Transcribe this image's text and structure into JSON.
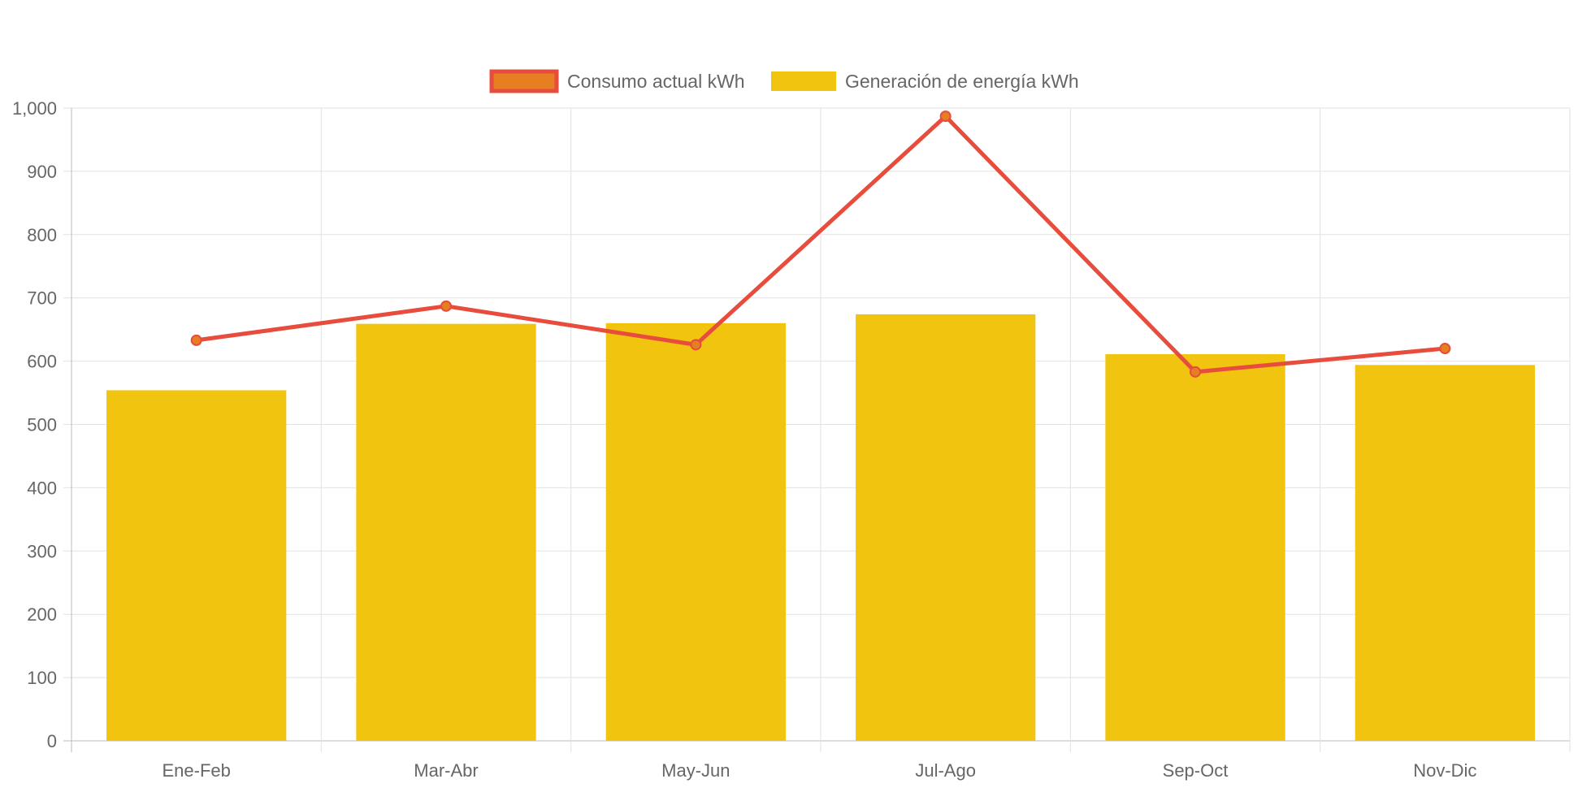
{
  "chart_data": {
    "type": "bar",
    "title": "",
    "xlabel": "",
    "ylabel": "",
    "categories": [
      "Ene-Feb",
      "Mar-Abr",
      "May-Jun",
      "Jul-Ago",
      "Sep-Oct",
      "Nov-Dic"
    ],
    "ylim": [
      0,
      1000
    ],
    "yticks": [
      0,
      100,
      200,
      300,
      400,
      500,
      600,
      700,
      800,
      900,
      1000
    ],
    "ytick_labels": [
      "0",
      "100",
      "200",
      "300",
      "400",
      "500",
      "600",
      "700",
      "800",
      "900",
      "1,000"
    ],
    "grid": true,
    "legend_position": "top-center",
    "series": [
      {
        "name": "Consumo actual kWh",
        "type": "line",
        "color": "#e74c3c",
        "marker_fill": "#e67e22",
        "values": [
          633,
          687,
          626,
          987,
          583,
          620
        ]
      },
      {
        "name": "Generación de energía kWh",
        "type": "bar",
        "color": "#f1c40f",
        "values": [
          554,
          659,
          660,
          674,
          611,
          594
        ]
      }
    ]
  }
}
